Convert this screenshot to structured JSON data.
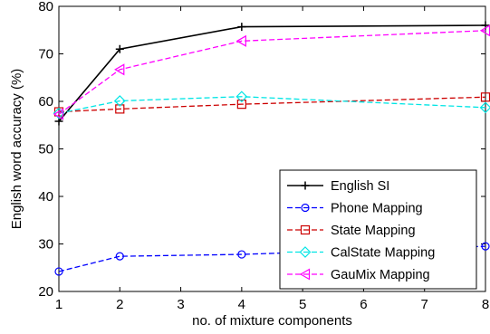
{
  "chart_data": {
    "type": "line",
    "title": "",
    "xlabel": "no. of mixture components",
    "ylabel": "English word accuracy (%)",
    "x": [
      1,
      2,
      4,
      8
    ],
    "xlim": [
      1,
      8
    ],
    "ylim": [
      20,
      80
    ],
    "xticks": [
      "1",
      "2",
      "3",
      "4",
      "5",
      "6",
      "7",
      "8"
    ],
    "yticks": [
      "20",
      "30",
      "40",
      "50",
      "60",
      "70",
      "80"
    ],
    "grid": false,
    "legend_position": "center-right",
    "series": [
      {
        "name": "English SI",
        "values": [
          55.8,
          71.0,
          75.7,
          76.0
        ],
        "color": "#000000",
        "dash": "solid",
        "marker": "plus"
      },
      {
        "name": "Phone Mapping",
        "values": [
          24.2,
          27.4,
          27.8,
          29.5
        ],
        "color": "#0000ff",
        "dash": "dashed",
        "marker": "circle"
      },
      {
        "name": "State Mapping",
        "values": [
          57.8,
          58.4,
          59.4,
          60.9
        ],
        "color": "#cc0000",
        "dash": "dashed",
        "marker": "square"
      },
      {
        "name": "CalState Mapping",
        "values": [
          57.5,
          60.1,
          61.0,
          58.7
        ],
        "color": "#00e5e5",
        "dash": "dashed",
        "marker": "diamond"
      },
      {
        "name": "GauMix Mapping",
        "values": [
          57.3,
          66.7,
          72.7,
          74.9
        ],
        "color": "#ff00ff",
        "dash": "dashed",
        "marker": "triangle-left"
      }
    ]
  }
}
